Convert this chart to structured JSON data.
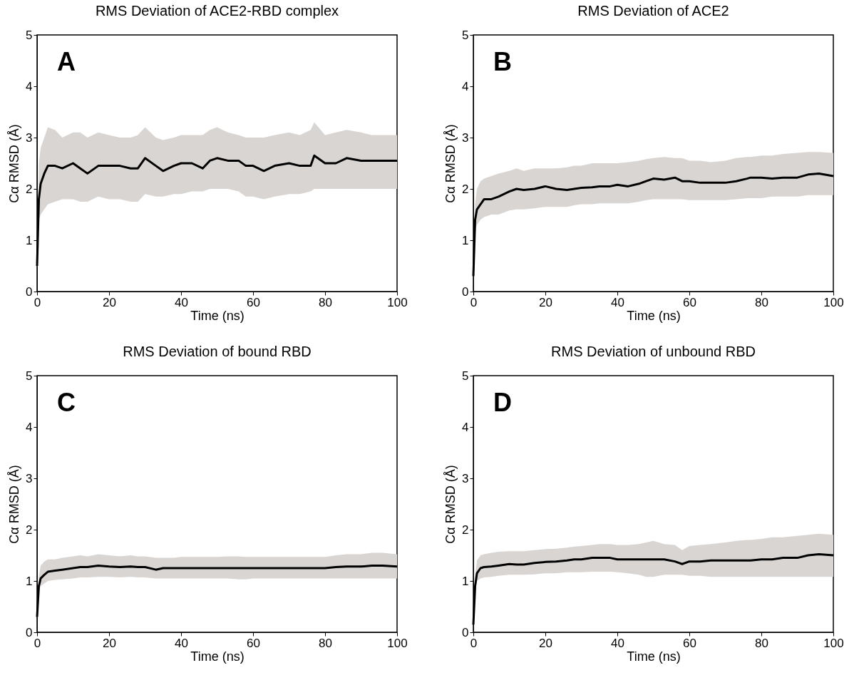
{
  "chart_data": [
    {
      "type": "line",
      "title": "RMS Deviation of ACE2-RBD complex",
      "xlabel": "Time (ns)",
      "ylabel": "Cα RMSD (Å)",
      "annotations": [
        "A"
      ],
      "xlim": [
        0,
        100
      ],
      "ylim": [
        0,
        5
      ],
      "xticks": [
        0,
        20,
        40,
        60,
        80,
        100
      ],
      "yticks": [
        0,
        1,
        2,
        3,
        4,
        5
      ],
      "grid": false,
      "x": [
        0,
        0.5,
        1,
        2,
        3,
        5,
        7,
        10,
        12,
        14,
        17,
        20,
        23,
        26,
        28,
        30,
        33,
        35,
        38,
        40,
        43,
        46,
        48,
        50,
        53,
        56,
        58,
        60,
        63,
        66,
        70,
        73,
        76,
        77,
        80,
        83,
        86,
        90,
        93,
        96,
        100
      ],
      "series": [
        {
          "color": "#000000",
          "values": [
            0.5,
            1.8,
            2.1,
            2.3,
            2.45,
            2.45,
            2.4,
            2.5,
            2.4,
            2.3,
            2.45,
            2.45,
            2.45,
            2.4,
            2.4,
            2.6,
            2.45,
            2.35,
            2.45,
            2.5,
            2.5,
            2.4,
            2.55,
            2.6,
            2.55,
            2.55,
            2.45,
            2.45,
            2.35,
            2.45,
            2.5,
            2.45,
            2.45,
            2.65,
            2.5,
            2.5,
            2.6,
            2.55,
            2.55,
            2.55,
            2.55
          ],
          "lower": [
            0.45,
            1.4,
            1.5,
            1.6,
            1.7,
            1.75,
            1.8,
            1.8,
            1.75,
            1.75,
            1.85,
            1.8,
            1.8,
            1.75,
            1.75,
            1.9,
            1.85,
            1.85,
            1.9,
            1.9,
            1.95,
            1.95,
            2.0,
            2.0,
            2.0,
            1.95,
            1.85,
            1.85,
            1.8,
            1.85,
            1.9,
            1.9,
            1.95,
            2.0,
            2.0,
            2.0,
            2.0,
            2.0,
            2.0,
            2.0,
            2.0
          ],
          "upper": [
            0.55,
            2.5,
            2.8,
            3.0,
            3.2,
            3.15,
            3.0,
            3.1,
            3.1,
            3.0,
            3.1,
            3.05,
            3.0,
            3.0,
            3.05,
            3.2,
            3.0,
            2.95,
            3.0,
            3.05,
            3.05,
            3.05,
            3.15,
            3.2,
            3.1,
            3.05,
            3.0,
            3.0,
            3.0,
            3.05,
            3.1,
            3.05,
            3.15,
            3.3,
            3.05,
            3.1,
            3.15,
            3.1,
            3.05,
            3.05,
            3.05
          ]
        }
      ]
    },
    {
      "type": "line",
      "title": "RMS Deviation of ACE2",
      "xlabel": "Time (ns)",
      "ylabel": "Cα RMSD (Å)",
      "annotations": [
        "B"
      ],
      "xlim": [
        0,
        100
      ],
      "ylim": [
        0,
        5
      ],
      "xticks": [
        0,
        20,
        40,
        60,
        80,
        100
      ],
      "yticks": [
        0,
        1,
        2,
        3,
        4,
        5
      ],
      "grid": false,
      "x": [
        0,
        0.5,
        1,
        2,
        3,
        5,
        7,
        10,
        12,
        14,
        17,
        20,
        23,
        26,
        28,
        30,
        33,
        35,
        38,
        40,
        43,
        46,
        48,
        50,
        53,
        56,
        58,
        60,
        63,
        66,
        70,
        73,
        76,
        77,
        80,
        83,
        86,
        90,
        93,
        96,
        100
      ],
      "series": [
        {
          "color": "#000000",
          "values": [
            0.3,
            1.4,
            1.6,
            1.7,
            1.8,
            1.8,
            1.85,
            1.95,
            2.0,
            1.98,
            2.0,
            2.05,
            2.0,
            1.98,
            2.0,
            2.02,
            2.03,
            2.05,
            2.05,
            2.08,
            2.05,
            2.1,
            2.15,
            2.2,
            2.18,
            2.22,
            2.15,
            2.15,
            2.12,
            2.12,
            2.12,
            2.15,
            2.2,
            2.22,
            2.22,
            2.2,
            2.22,
            2.22,
            2.28,
            2.3,
            2.25
          ],
          "lower": [
            0.3,
            1.2,
            1.3,
            1.4,
            1.45,
            1.5,
            1.5,
            1.58,
            1.6,
            1.6,
            1.62,
            1.65,
            1.65,
            1.65,
            1.68,
            1.7,
            1.7,
            1.72,
            1.72,
            1.72,
            1.72,
            1.75,
            1.78,
            1.8,
            1.8,
            1.8,
            1.8,
            1.78,
            1.78,
            1.78,
            1.78,
            1.8,
            1.82,
            1.82,
            1.82,
            1.85,
            1.85,
            1.85,
            1.88,
            1.88,
            1.88
          ],
          "upper": [
            0.35,
            1.7,
            2.0,
            2.15,
            2.2,
            2.25,
            2.3,
            2.35,
            2.4,
            2.35,
            2.4,
            2.4,
            2.4,
            2.42,
            2.45,
            2.45,
            2.5,
            2.5,
            2.5,
            2.5,
            2.52,
            2.55,
            2.58,
            2.6,
            2.62,
            2.6,
            2.6,
            2.55,
            2.55,
            2.52,
            2.55,
            2.6,
            2.62,
            2.62,
            2.65,
            2.65,
            2.68,
            2.7,
            2.72,
            2.72,
            2.7
          ]
        }
      ]
    },
    {
      "type": "line",
      "title": "RMS Deviation of bound RBD",
      "xlabel": "Time (ns)",
      "ylabel": "Cα RMSD (Å)",
      "annotations": [
        "C"
      ],
      "xlim": [
        0,
        100
      ],
      "ylim": [
        0,
        5
      ],
      "xticks": [
        0,
        20,
        40,
        60,
        80,
        100
      ],
      "yticks": [
        0,
        1,
        2,
        3,
        4,
        5
      ],
      "grid": false,
      "x": [
        0,
        0.5,
        1,
        2,
        3,
        5,
        7,
        10,
        12,
        14,
        17,
        20,
        23,
        26,
        28,
        30,
        33,
        35,
        38,
        40,
        43,
        46,
        48,
        50,
        53,
        56,
        58,
        60,
        63,
        66,
        70,
        73,
        76,
        77,
        80,
        83,
        86,
        90,
        93,
        96,
        100
      ],
      "series": [
        {
          "color": "#000000",
          "values": [
            0.3,
            0.9,
            1.05,
            1.12,
            1.18,
            1.2,
            1.22,
            1.25,
            1.27,
            1.27,
            1.3,
            1.28,
            1.27,
            1.28,
            1.27,
            1.27,
            1.22,
            1.25,
            1.25,
            1.25,
            1.25,
            1.25,
            1.25,
            1.25,
            1.25,
            1.25,
            1.25,
            1.25,
            1.25,
            1.25,
            1.25,
            1.25,
            1.25,
            1.25,
            1.25,
            1.27,
            1.28,
            1.28,
            1.3,
            1.3,
            1.28
          ],
          "lower": [
            0.3,
            0.8,
            0.9,
            0.95,
            1.0,
            1.02,
            1.03,
            1.05,
            1.07,
            1.07,
            1.08,
            1.08,
            1.07,
            1.08,
            1.07,
            1.07,
            1.05,
            1.05,
            1.05,
            1.05,
            1.05,
            1.05,
            1.05,
            1.05,
            1.05,
            1.03,
            1.03,
            1.05,
            1.05,
            1.05,
            1.05,
            1.05,
            1.05,
            1.05,
            1.05,
            1.05,
            1.05,
            1.05,
            1.05,
            1.05,
            1.05
          ],
          "upper": [
            0.32,
            1.1,
            1.3,
            1.38,
            1.42,
            1.42,
            1.45,
            1.48,
            1.5,
            1.48,
            1.52,
            1.5,
            1.48,
            1.5,
            1.48,
            1.48,
            1.45,
            1.45,
            1.45,
            1.47,
            1.47,
            1.47,
            1.47,
            1.47,
            1.48,
            1.48,
            1.47,
            1.47,
            1.47,
            1.47,
            1.47,
            1.47,
            1.47,
            1.47,
            1.47,
            1.5,
            1.52,
            1.52,
            1.55,
            1.55,
            1.52
          ]
        }
      ]
    },
    {
      "type": "line",
      "title": "RMS Deviation of unbound RBD",
      "xlabel": "Time (ns)",
      "ylabel": "Cα RMSD (Å)",
      "annotations": [
        "D"
      ],
      "xlim": [
        0,
        100
      ],
      "ylim": [
        0,
        5
      ],
      "xticks": [
        0,
        20,
        40,
        60,
        80,
        100
      ],
      "yticks": [
        0,
        1,
        2,
        3,
        4,
        5
      ],
      "grid": false,
      "x": [
        0,
        0.5,
        1,
        2,
        3,
        5,
        7,
        10,
        12,
        14,
        17,
        20,
        23,
        26,
        28,
        30,
        33,
        35,
        38,
        40,
        43,
        46,
        48,
        50,
        53,
        56,
        58,
        60,
        63,
        66,
        70,
        73,
        76,
        77,
        80,
        83,
        86,
        90,
        93,
        96,
        100
      ],
      "series": [
        {
          "color": "#000000",
          "values": [
            0.15,
            0.9,
            1.15,
            1.25,
            1.27,
            1.28,
            1.3,
            1.33,
            1.32,
            1.32,
            1.35,
            1.37,
            1.38,
            1.4,
            1.42,
            1.42,
            1.45,
            1.45,
            1.45,
            1.42,
            1.42,
            1.42,
            1.42,
            1.42,
            1.42,
            1.38,
            1.33,
            1.38,
            1.38,
            1.4,
            1.4,
            1.4,
            1.4,
            1.4,
            1.42,
            1.42,
            1.45,
            1.45,
            1.5,
            1.52,
            1.5
          ],
          "lower": [
            0.15,
            0.8,
            1.0,
            1.05,
            1.07,
            1.08,
            1.1,
            1.12,
            1.12,
            1.12,
            1.13,
            1.15,
            1.15,
            1.17,
            1.17,
            1.17,
            1.18,
            1.18,
            1.18,
            1.17,
            1.15,
            1.12,
            1.08,
            1.08,
            1.12,
            1.12,
            1.12,
            1.1,
            1.1,
            1.08,
            1.08,
            1.08,
            1.08,
            1.08,
            1.08,
            1.08,
            1.08,
            1.08,
            1.08,
            1.08,
            1.08
          ],
          "upper": [
            0.17,
            1.1,
            1.4,
            1.5,
            1.52,
            1.55,
            1.57,
            1.58,
            1.58,
            1.58,
            1.6,
            1.62,
            1.63,
            1.65,
            1.67,
            1.68,
            1.7,
            1.72,
            1.72,
            1.7,
            1.7,
            1.72,
            1.75,
            1.78,
            1.72,
            1.7,
            1.6,
            1.68,
            1.7,
            1.72,
            1.75,
            1.78,
            1.8,
            1.8,
            1.82,
            1.85,
            1.85,
            1.88,
            1.9,
            1.92,
            1.9
          ]
        }
      ]
    }
  ]
}
